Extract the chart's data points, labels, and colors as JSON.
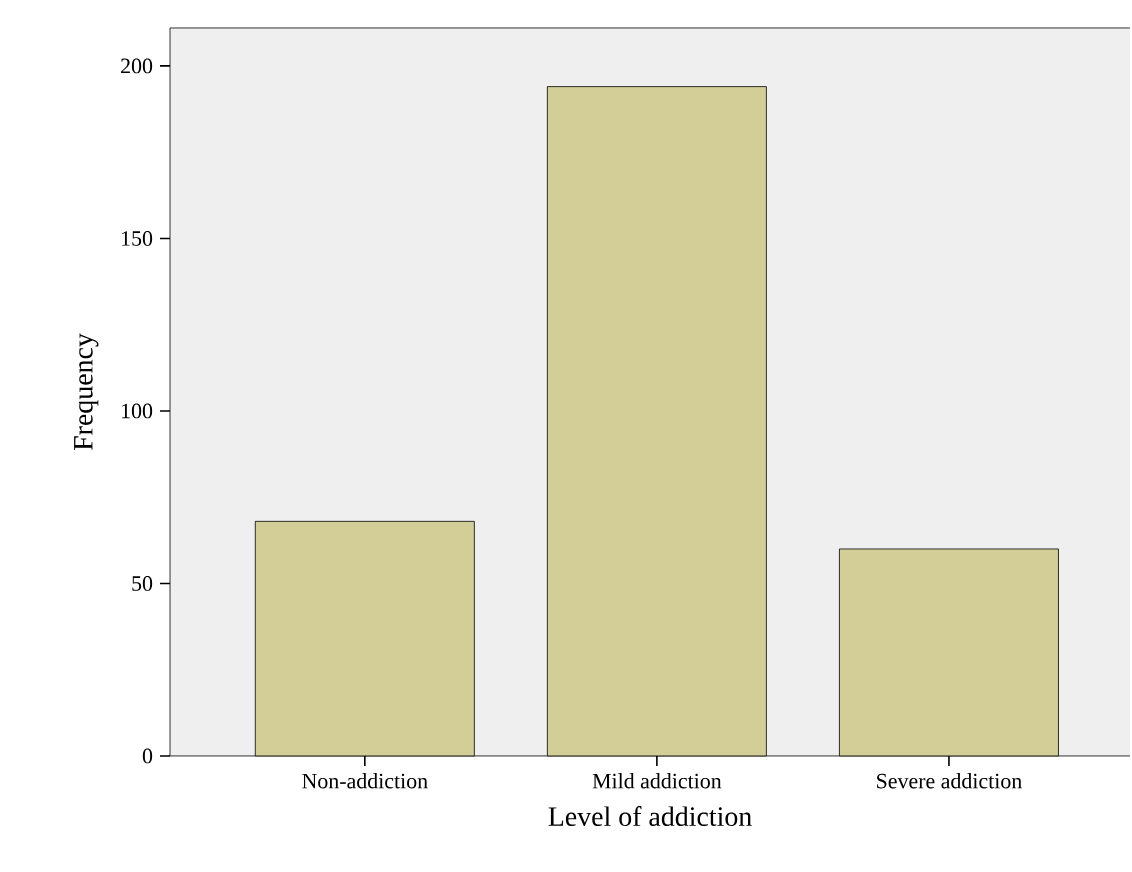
{
  "chart_data": {
    "type": "bar",
    "xlabel": "Level of addiction",
    "ylabel": "Frequency",
    "categories": [
      "Non-addiction",
      "Mild addiction",
      "Severe addiction"
    ],
    "values": [
      68,
      194,
      60
    ],
    "color": "#d3ce97",
    "ylim": [
      0,
      211
    ],
    "yticks": [
      0,
      50,
      100,
      150,
      200
    ],
    "grid": false
  }
}
